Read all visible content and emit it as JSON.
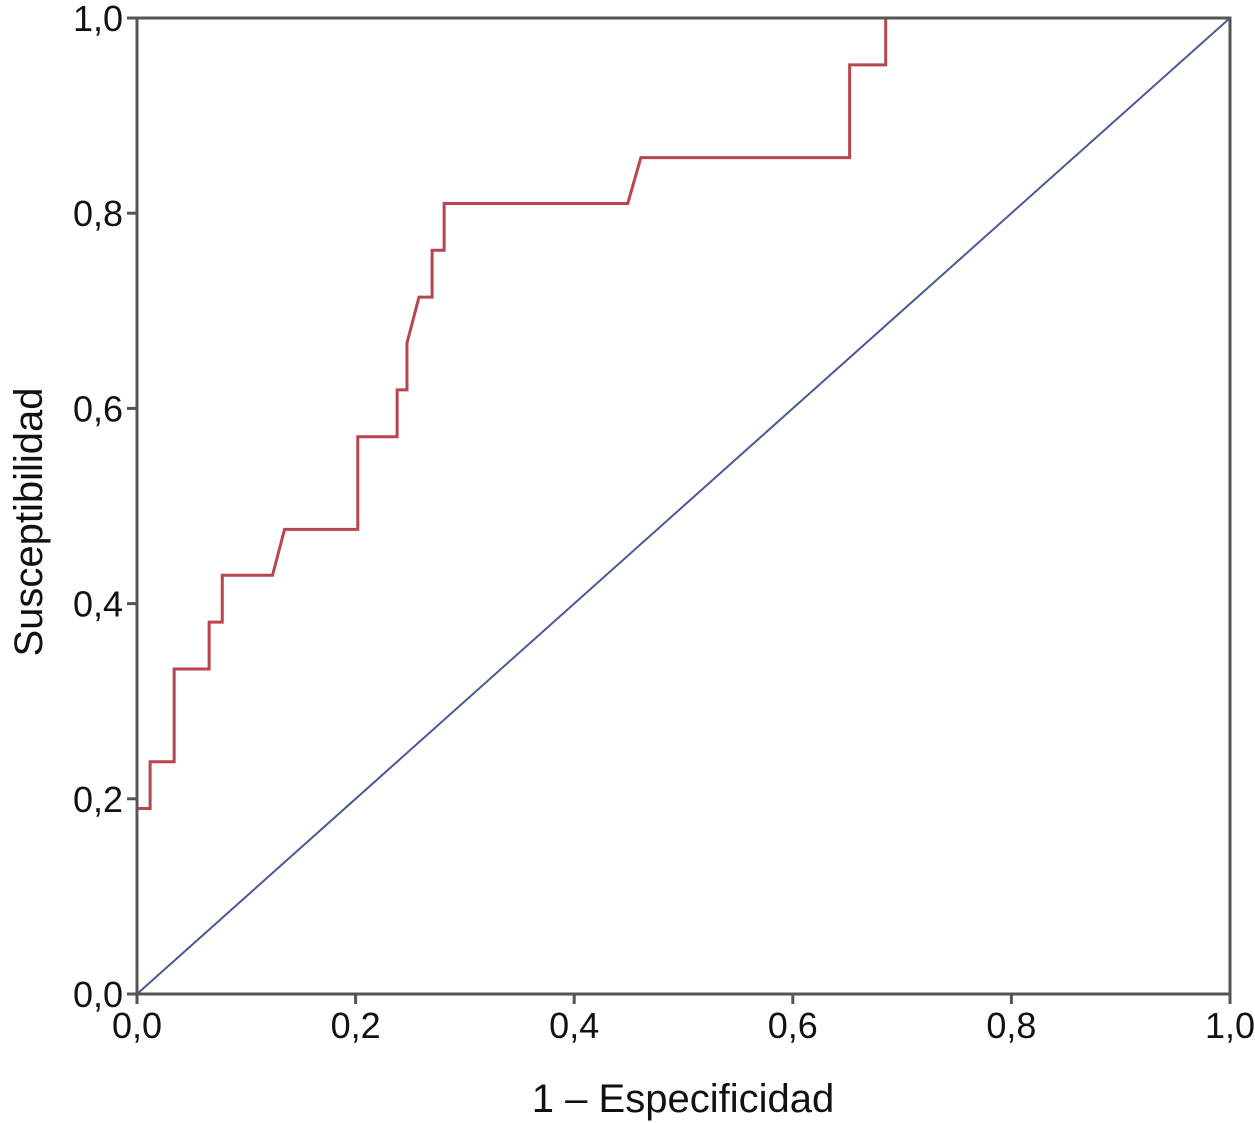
{
  "chart_data": {
    "type": "line",
    "title": "",
    "xlabel": "1 – Especificidad",
    "ylabel": "Susceptibilidad",
    "xlim": [
      0,
      1
    ],
    "ylim": [
      0,
      1
    ],
    "grid": false,
    "legend": "none",
    "x_ticks": [
      "0,0",
      "0,2",
      "0,4",
      "0,6",
      "0,8",
      "1,0"
    ],
    "y_ticks": [
      "0,0",
      "0,2",
      "0,4",
      "0,6",
      "0,8",
      "1,0"
    ],
    "series": [
      {
        "color": "#b9454f",
        "points": [
          [
            0.0,
            0.0
          ],
          [
            0.0,
            0.19
          ],
          [
            0.012,
            0.19
          ],
          [
            0.012,
            0.238
          ],
          [
            0.034,
            0.238
          ],
          [
            0.034,
            0.333
          ],
          [
            0.066,
            0.333
          ],
          [
            0.066,
            0.381
          ],
          [
            0.078,
            0.381
          ],
          [
            0.078,
            0.429
          ],
          [
            0.124,
            0.429
          ],
          [
            0.135,
            0.476
          ],
          [
            0.202,
            0.476
          ],
          [
            0.202,
            0.571
          ],
          [
            0.238,
            0.571
          ],
          [
            0.238,
            0.619
          ],
          [
            0.247,
            0.619
          ],
          [
            0.247,
            0.667
          ],
          [
            0.258,
            0.714
          ],
          [
            0.27,
            0.714
          ],
          [
            0.27,
            0.762
          ],
          [
            0.281,
            0.762
          ],
          [
            0.281,
            0.81
          ],
          [
            0.449,
            0.81
          ],
          [
            0.461,
            0.857
          ],
          [
            0.652,
            0.857
          ],
          [
            0.652,
            0.952
          ],
          [
            0.685,
            0.952
          ],
          [
            0.685,
            1.0
          ],
          [
            1.0,
            1.0
          ]
        ]
      },
      {
        "color": "#4a5a94",
        "points": [
          [
            0,
            0
          ],
          [
            1,
            1
          ]
        ]
      }
    ]
  }
}
